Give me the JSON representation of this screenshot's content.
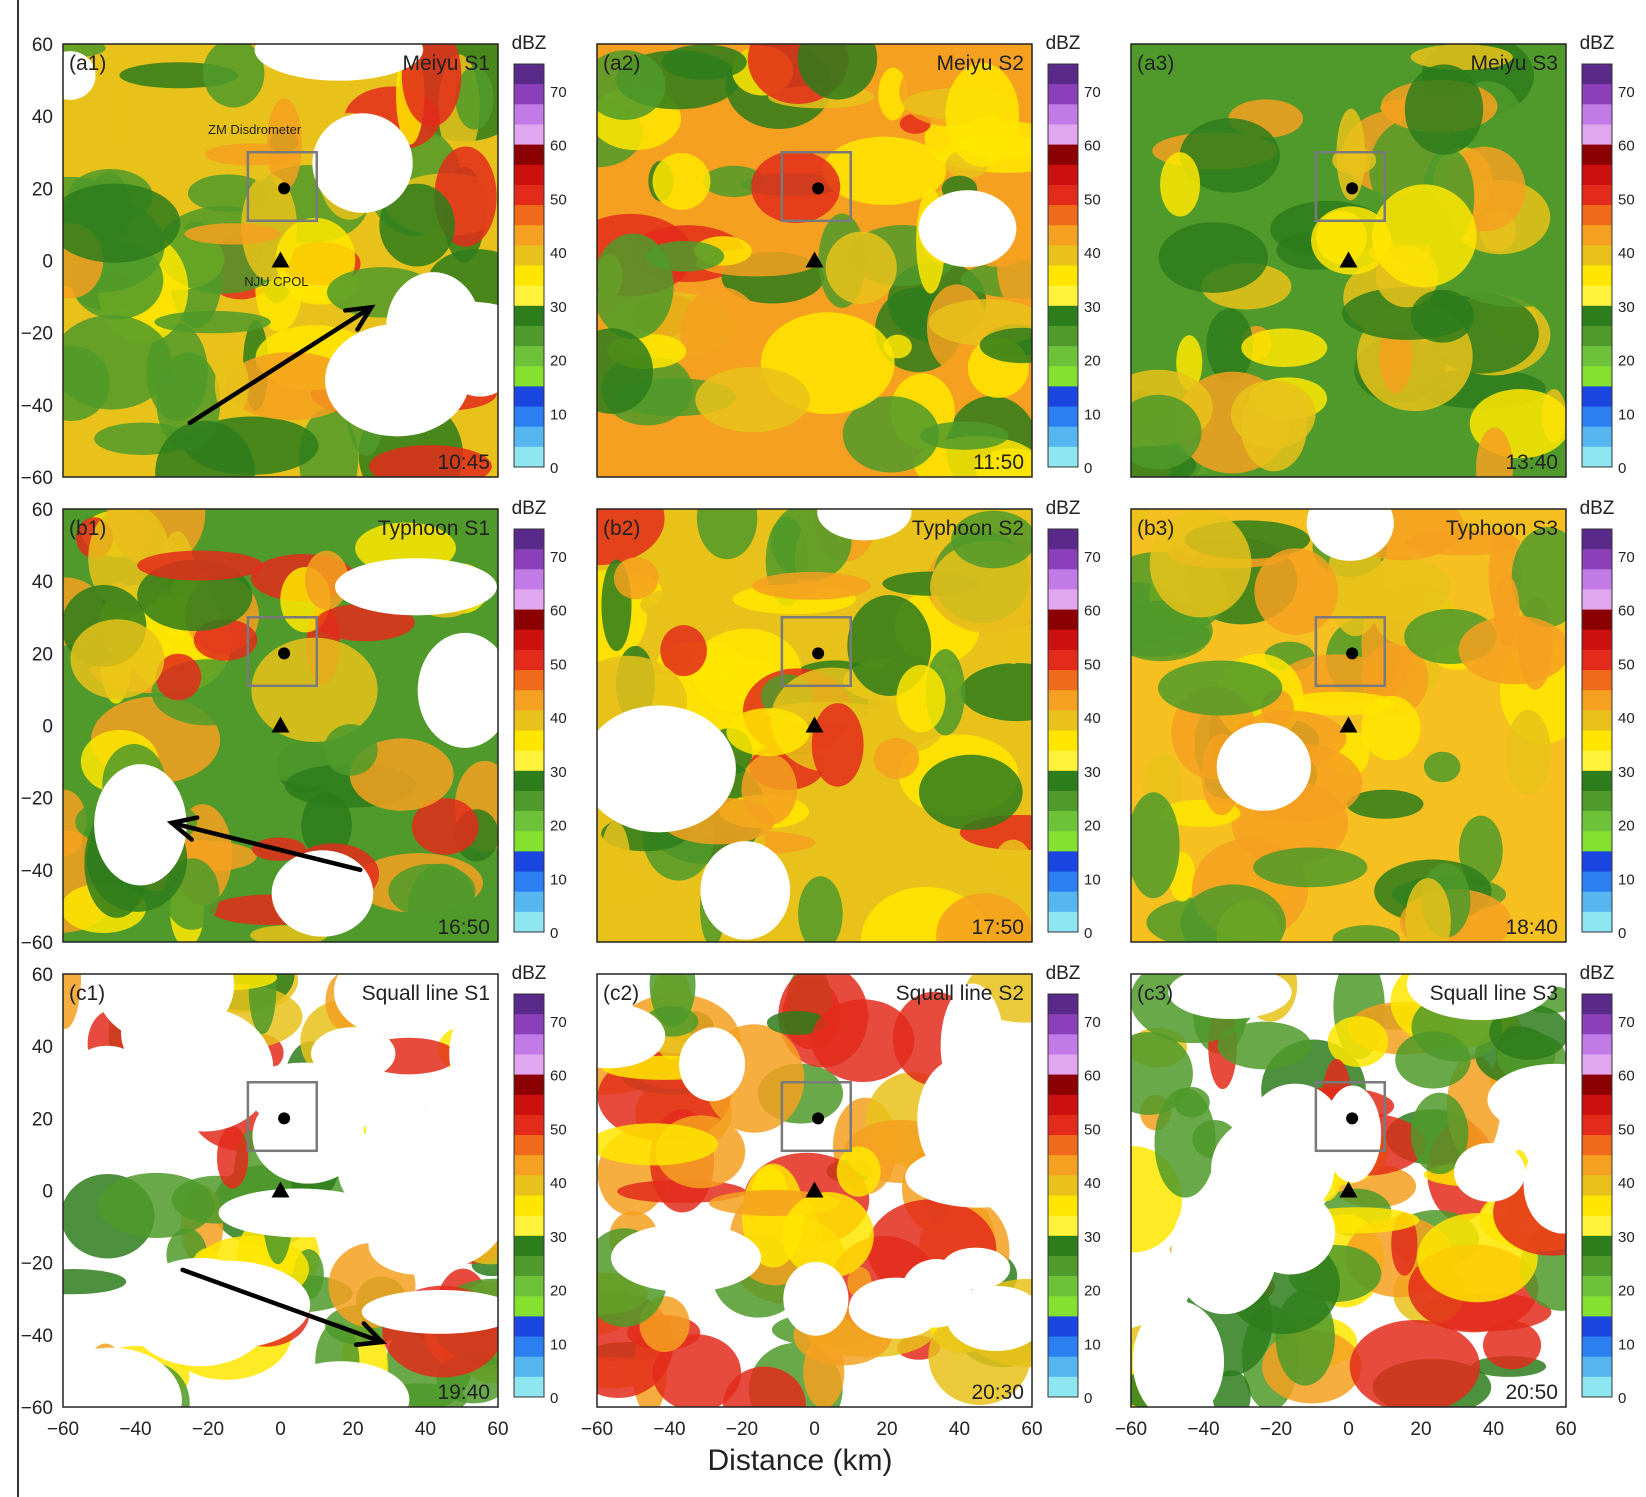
{
  "figure": {
    "xlabel": "Distance (km)",
    "x_ticks": [
      "−60",
      "−40",
      "−20",
      "0",
      "20",
      "40",
      "60"
    ],
    "y_ticks": [
      "60",
      "40",
      "20",
      "0",
      "−20",
      "−40",
      "−60"
    ],
    "colorbar_unit": "dBZ",
    "colorbar_ticks": [
      "70",
      "60",
      "50",
      "40",
      "30",
      "20",
      "10",
      "0"
    ],
    "colorbar_colors": [
      "#5a2a8a",
      "#8b3fb8",
      "#c27ae6",
      "#e0a7f0",
      "#8b0000",
      "#cc1010",
      "#e32b1b",
      "#ef6a1a",
      "#f5a020",
      "#e8c21a",
      "#ffe600",
      "#fff23a",
      "#2e7d1c",
      "#4f9a2a",
      "#6dc23a",
      "#86e02f",
      "#1b45e0",
      "#2b7ff0",
      "#55b6f0",
      "#8ee6f0"
    ],
    "site_labels": {
      "disdrometer": "ZM Disdrometer",
      "radar": "NJU CPOL"
    }
  },
  "panels": [
    {
      "id": "a1",
      "label": "(a1)",
      "title": "Meiyu S1",
      "time": "10:45",
      "dominant": "#e8c21a",
      "accent": "#4f9a2a",
      "hot": "#e32b1b",
      "empty": 0.18
    },
    {
      "id": "a2",
      "label": "(a2)",
      "title": "Meiyu S2",
      "time": "11:50",
      "dominant": "#f5a020",
      "accent": "#ffe600",
      "hot": "#e32b1b",
      "empty": 0.02
    },
    {
      "id": "a3",
      "label": "(a3)",
      "title": "Meiyu S3",
      "time": "13:40",
      "dominant": "#4f9a2a",
      "accent": "#e8c21a",
      "hot": "#2e7d1c",
      "empty": 0.0
    },
    {
      "id": "b1",
      "label": "(b1)",
      "title": "Typhoon S1",
      "time": "16:50",
      "dominant": "#4f9a2a",
      "accent": "#e32b1b",
      "hot": "#f5a020",
      "empty": 0.1
    },
    {
      "id": "b2",
      "label": "(b2)",
      "title": "Typhoon S2",
      "time": "17:50",
      "dominant": "#e8c21a",
      "accent": "#e32b1b",
      "hot": "#4f9a2a",
      "empty": 0.08
    },
    {
      "id": "b3",
      "label": "(b3)",
      "title": "Typhoon S3",
      "time": "18:40",
      "dominant": "#f5c020",
      "accent": "#f5a020",
      "hot": "#4f9a2a",
      "empty": 0.06
    },
    {
      "id": "c1",
      "label": "(c1)",
      "title": "Squall line S1",
      "time": "19:40",
      "dominant": "#ffffff",
      "accent": "#e32b1b",
      "hot": "#4f9a2a",
      "empty": 0.55
    },
    {
      "id": "c2",
      "label": "(c2)",
      "title": "Squall line S2",
      "time": "20:30",
      "dominant": "#ffffff",
      "accent": "#e32b1b",
      "hot": "#f5a020",
      "empty": 0.3
    },
    {
      "id": "c3",
      "label": "(c3)",
      "title": "Squall line S3",
      "time": "20:50",
      "dominant": "#ffffff",
      "accent": "#e32b1b",
      "hot": "#4f9a2a",
      "empty": 0.3
    }
  ],
  "storm_motion_arrows": [
    {
      "panel": "a1",
      "from": [
        -25,
        -45
      ],
      "to": [
        25,
        -13
      ]
    },
    {
      "panel": "b1",
      "from": [
        22,
        -40
      ],
      "to": [
        -30,
        -27
      ]
    },
    {
      "panel": "c1",
      "from": [
        -27,
        -22
      ],
      "to": [
        28,
        -42
      ]
    }
  ],
  "site_positions_km": {
    "disdrometer": [
      1,
      20
    ],
    "radar": [
      0,
      0
    ],
    "box": [
      -9,
      11,
      10,
      30
    ]
  }
}
